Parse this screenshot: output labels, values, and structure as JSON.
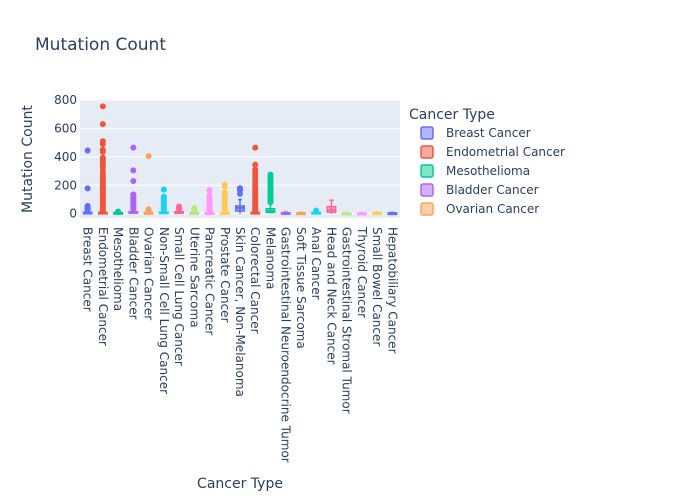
{
  "chart_data": {
    "type": "box",
    "title": "Mutation Count",
    "xlabel": "Cancer Type",
    "ylabel": "Mutation Count",
    "ylim": [
      -30,
      800
    ],
    "yticks": [
      0,
      200,
      400,
      600,
      800
    ],
    "grid": true,
    "legend": {
      "title": "Cancer Type",
      "position": "top-right",
      "entries": [
        "Breast Cancer",
        "Endometrial Cancer",
        "Mesothelioma",
        "Bladder Cancer",
        "Ovarian Cancer"
      ]
    },
    "categories": [
      "Breast Cancer",
      "Endometrial Cancer",
      "Mesothelioma",
      "Bladder Cancer",
      "Ovarian Cancer",
      "Non-Small Cell Lung Cancer",
      "Small Cell Lung Cancer",
      "Uterine Sarcoma",
      "Pancreatic Cancer",
      "Prostate Cancer",
      "Skin Cancer, Non-Melanoma",
      "Colorectal Cancer",
      "Melanoma",
      "Gastrointestinal Neuroendocrine Tumor",
      "Soft Tissue Sarcoma",
      "Anal Cancer",
      "Head and Neck Cancer",
      "Gastrointestinal Stromal Tumor",
      "Thyroid Cancer",
      "Small Bowel Cancer",
      "Hepatobiliary Cancer"
    ],
    "series": [
      {
        "name": "Breast Cancer",
        "color": "#636efa",
        "q1": 3,
        "median": 5,
        "q3": 10,
        "whisker_low": 0,
        "whisker_high": 20,
        "outliers": [
          445,
          178,
          55,
          48,
          42,
          38,
          33,
          30,
          27,
          25
        ]
      },
      {
        "name": "Endometrial Cancer",
        "color": "#EF553B",
        "q1": 3,
        "median": 5,
        "q3": 10,
        "whisker_low": 0,
        "whisker_high": 15,
        "outliers": [
          755,
          630,
          510,
          490,
          450,
          435,
          395,
          380,
          370,
          360,
          345,
          325,
          300,
          275,
          260,
          250,
          240,
          230,
          220,
          210,
          200,
          190,
          180,
          170,
          160,
          150,
          140,
          130,
          120,
          110,
          100,
          90,
          80,
          70,
          60,
          50,
          40,
          30,
          25
        ]
      },
      {
        "name": "Mesothelioma",
        "color": "#00cc96",
        "q1": 3,
        "median": 5,
        "q3": 8,
        "whisker_low": 0,
        "whisker_high": 12,
        "outliers": [
          15,
          13
        ]
      },
      {
        "name": "Bladder Cancer",
        "color": "#ab63fa",
        "q1": 4,
        "median": 8,
        "q3": 15,
        "whisker_low": 0,
        "whisker_high": 30,
        "outliers": [
          465,
          305,
          230,
          135,
          120,
          110,
          95,
          80,
          65,
          55,
          45,
          40,
          35
        ]
      },
      {
        "name": "Ovarian Cancer",
        "color": "#FFA15A",
        "q1": 2,
        "median": 4,
        "q3": 8,
        "whisker_low": 0,
        "whisker_high": 15,
        "outliers": [
          405,
          32,
          25,
          20
        ]
      },
      {
        "name": "Non-Small Cell Lung Cancer",
        "color": "#19d3f3",
        "q1": 3,
        "median": 6,
        "q3": 12,
        "whisker_low": 0,
        "whisker_high": 25,
        "outliers": [
          170,
          120,
          110,
          100,
          90,
          80,
          70,
          60,
          50,
          40,
          35,
          30
        ]
      },
      {
        "name": "Small Cell Lung Cancer",
        "color": "#FF6692",
        "q1": 4,
        "median": 8,
        "q3": 14,
        "whisker_low": 0,
        "whisker_high": 25,
        "outliers": [
          50,
          40,
          32
        ]
      },
      {
        "name": "Uterine Sarcoma",
        "color": "#B6E880",
        "q1": 2,
        "median": 4,
        "q3": 8,
        "whisker_low": 0,
        "whisker_high": 15,
        "outliers": [
          40,
          30,
          22
        ]
      },
      {
        "name": "Pancreatic Cancer",
        "color": "#FF97FF",
        "q1": 2,
        "median": 4,
        "q3": 7,
        "whisker_low": 0,
        "whisker_high": 12,
        "outliers": [
          165,
          130,
          110,
          95,
          80,
          70,
          60,
          50,
          40,
          30,
          25,
          20,
          15
        ]
      },
      {
        "name": "Prostate Cancer",
        "color": "#FECB52",
        "q1": 2,
        "median": 4,
        "q3": 8,
        "whisker_low": 0,
        "whisker_high": 15,
        "outliers": [
          205,
          190,
          150,
          140,
          130,
          120,
          100,
          90,
          80,
          70,
          60,
          50,
          40,
          30,
          20
        ]
      },
      {
        "name": "Skin Cancer, Non-Melanoma",
        "color": "#636efa",
        "q1": 20,
        "median": 40,
        "q3": 55,
        "whisker_low": 0,
        "whisker_high": 100,
        "outliers": [
          180,
          165,
          140
        ]
      },
      {
        "name": "Colorectal Cancer",
        "color": "#EF553B",
        "q1": 3,
        "median": 6,
        "q3": 10,
        "whisker_low": 0,
        "whisker_high": 20,
        "outliers": [
          465,
          345,
          310,
          290,
          270,
          250,
          230,
          215,
          200,
          185,
          170,
          160,
          150,
          140,
          130,
          120,
          110,
          100,
          90,
          80,
          70,
          60,
          50,
          40,
          30,
          25
        ]
      },
      {
        "name": "Melanoma",
        "color": "#00cc96",
        "q1": 10,
        "median": 18,
        "q3": 35,
        "whisker_low": 0,
        "whisker_high": 70,
        "outliers": [
          275,
          260,
          240,
          230,
          220,
          210,
          200,
          190,
          180,
          170,
          160,
          150,
          140,
          130,
          120,
          110,
          100,
          90,
          80
        ]
      },
      {
        "name": "Gastrointestinal Neuroendocrine Tumor",
        "color": "#ab63fa",
        "q1": 2,
        "median": 4,
        "q3": 7,
        "whisker_low": 0,
        "whisker_high": 12,
        "outliers": []
      },
      {
        "name": "Soft Tissue Sarcoma",
        "color": "#FFA15A",
        "q1": 2,
        "median": 3,
        "q3": 6,
        "whisker_low": 0,
        "whisker_high": 10,
        "outliers": []
      },
      {
        "name": "Anal Cancer",
        "color": "#19d3f3",
        "q1": 3,
        "median": 6,
        "q3": 10,
        "whisker_low": 0,
        "whisker_high": 18,
        "outliers": [
          22
        ]
      },
      {
        "name": "Head and Neck Cancer",
        "color": "#FF6692",
        "q1": 10,
        "median": 25,
        "q3": 50,
        "whisker_low": 0,
        "whisker_high": 95,
        "outliers": []
      },
      {
        "name": "Gastrointestinal Stromal Tumor",
        "color": "#B6E880",
        "q1": 1,
        "median": 2,
        "q3": 4,
        "whisker_low": 0,
        "whisker_high": 8,
        "outliers": []
      },
      {
        "name": "Thyroid Cancer",
        "color": "#FF97FF",
        "q1": 1,
        "median": 2,
        "q3": 4,
        "whisker_low": 0,
        "whisker_high": 8,
        "outliers": []
      },
      {
        "name": "Small Bowel Cancer",
        "color": "#FECB52",
        "q1": 2,
        "median": 4,
        "q3": 7,
        "whisker_low": 0,
        "whisker_high": 12,
        "outliers": []
      },
      {
        "name": "Hepatobiliary Cancer",
        "color": "#636efa",
        "q1": 1,
        "median": 3,
        "q3": 6,
        "whisker_low": 0,
        "whisker_high": 10,
        "outliers": []
      }
    ]
  }
}
